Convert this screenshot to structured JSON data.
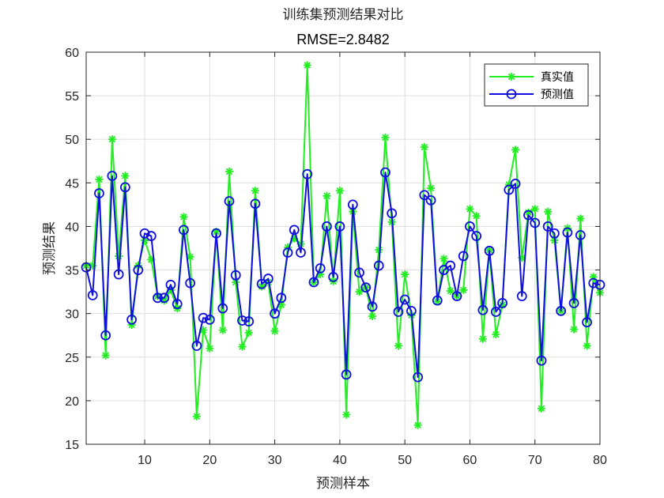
{
  "chart_data": {
    "type": "line",
    "title": "训练集预测结果对比",
    "subtitle": "RMSE=2.8482",
    "xlabel": "预测样本",
    "ylabel": "预测结果",
    "xlim": [
      1,
      80
    ],
    "ylim": [
      15,
      60
    ],
    "xticks": [
      10,
      20,
      30,
      40,
      50,
      60,
      70,
      80
    ],
    "yticks": [
      15,
      20,
      25,
      30,
      35,
      40,
      45,
      50,
      55,
      60
    ],
    "grid": true,
    "legend_position": "top-right",
    "series": [
      {
        "name": "真实值",
        "color": "#22ee22",
        "marker": "asterisk",
        "values": [
          35.5,
          35.5,
          45.4,
          25.2,
          50.0,
          36.6,
          45.8,
          28.7,
          35.5,
          38.4,
          36.2,
          32.0,
          31.5,
          32.7,
          30.6,
          41.1,
          36.5,
          18.2,
          28.1,
          26.0,
          39.4,
          28.1,
          46.3,
          33.6,
          26.2,
          27.8,
          44.1,
          33.1,
          33.6,
          28.0,
          31.0,
          37.6,
          38.6,
          38.0,
          58.5,
          33.6,
          34.5,
          43.5,
          33.7,
          44.1,
          18.4,
          41.7,
          32.5,
          33.0,
          29.7,
          37.3,
          50.2,
          40.5,
          26.3,
          34.5,
          29.8,
          17.2,
          49.1,
          44.4,
          31.4,
          36.3,
          32.6,
          32.0,
          32.7,
          42.0,
          41.2,
          27.1,
          37.3,
          27.6,
          31.0,
          44.8,
          48.8,
          36.4,
          41.6,
          42.0,
          19.1,
          41.7,
          38.4,
          30.3,
          39.8,
          28.2,
          40.9,
          26.3,
          34.2,
          32.4
        ]
      },
      {
        "name": "预测值",
        "color": "#1010dd",
        "marker": "circle",
        "values": [
          35.3,
          32.1,
          43.8,
          27.5,
          45.8,
          34.5,
          44.5,
          29.3,
          35.0,
          39.2,
          38.9,
          31.8,
          31.8,
          33.3,
          31.1,
          39.6,
          33.5,
          26.3,
          29.5,
          29.3,
          39.2,
          30.6,
          42.9,
          34.4,
          29.2,
          29.1,
          42.6,
          33.4,
          34.0,
          30.0,
          31.8,
          37.0,
          39.6,
          37.0,
          46.0,
          33.6,
          35.2,
          40.0,
          34.2,
          40.0,
          23.0,
          42.5,
          34.7,
          33.0,
          30.8,
          35.5,
          46.2,
          41.5,
          30.2,
          31.6,
          30.3,
          22.7,
          43.6,
          43.0,
          31.5,
          35.0,
          35.5,
          32.0,
          36.6,
          40.0,
          38.9,
          30.4,
          37.2,
          30.2,
          31.2,
          44.2,
          44.9,
          32.0,
          41.3,
          40.4,
          24.6,
          40.0,
          39.2,
          30.3,
          39.3,
          31.2,
          39.0,
          29.0,
          33.5,
          33.3
        ]
      }
    ]
  }
}
